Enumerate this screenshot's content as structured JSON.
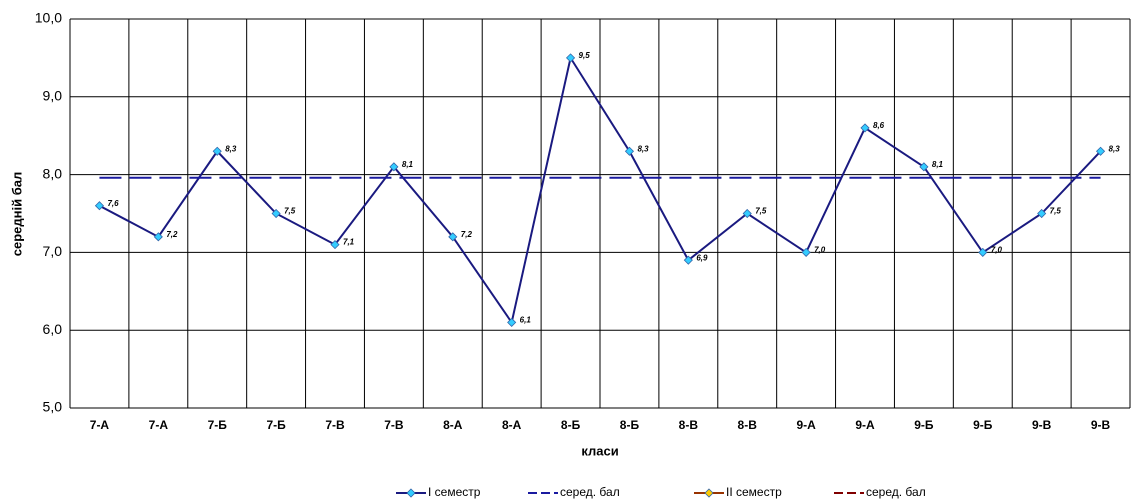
{
  "chart_data": {
    "type": "line",
    "x_label": "класи",
    "y_label": "середній бал",
    "categories": [
      "7-А",
      "7-А",
      "7-Б",
      "7-Б",
      "7-В",
      "7-В",
      "8-А",
      "8-А",
      "8-Б",
      "8-Б",
      "8-В",
      "8-В",
      "9-А",
      "9-А",
      "9-Б",
      "9-Б",
      "9-В",
      "9-В"
    ],
    "series": [
      {
        "name": "I семестр",
        "color": "#1a1a80",
        "marker_color": "#33ccff",
        "marker": true,
        "dashed": false,
        "values": [
          7.6,
          7.2,
          8.3,
          7.5,
          7.1,
          8.1,
          7.2,
          6.1,
          9.5,
          8.3,
          6.9,
          7.5,
          7.0,
          8.6,
          8.1,
          7.0,
          7.5,
          8.3
        ],
        "value_labels": [
          "7,6",
          "7,2",
          "8,3",
          "7,5",
          "7,1",
          "8,1",
          "7,2",
          "6,1",
          "9,5",
          "8,3",
          "6,9",
          "7,5",
          "7,0",
          "8,6",
          "8,1",
          "7,0",
          "7,5",
          "8,3"
        ]
      },
      {
        "name": "серед. бал",
        "color": "#1a1aa0",
        "marker": false,
        "dashed": true,
        "values": [
          7.96,
          7.96,
          7.96,
          7.96,
          7.96,
          7.96,
          7.96,
          7.96,
          7.96,
          7.96,
          7.96,
          7.96,
          7.96,
          7.96,
          7.96,
          7.96,
          7.96,
          7.96
        ]
      },
      {
        "name": "II семестр",
        "color": "#993300",
        "marker_color": "#ffcc00",
        "marker": true,
        "dashed": false,
        "values": [
          null,
          null,
          null,
          null,
          null,
          null,
          null,
          null,
          null,
          null,
          null,
          null,
          null,
          null,
          null,
          null,
          null,
          null
        ]
      },
      {
        "name": "серед. бал",
        "color": "#800000",
        "marker": false,
        "dashed": true,
        "values": [
          null,
          null,
          null,
          null,
          null,
          null,
          null,
          null,
          null,
          null,
          null,
          null,
          null,
          null,
          null,
          null,
          null,
          null
        ]
      }
    ],
    "ylim": [
      5,
      10
    ],
    "yticks": [
      {
        "value": 5,
        "label": "5,0"
      },
      {
        "value": 6,
        "label": "6,0"
      },
      {
        "value": 7,
        "label": "7,0"
      },
      {
        "value": 8,
        "label": "8,0"
      },
      {
        "value": 9,
        "label": "9,0"
      },
      {
        "value": 10,
        "label": "10,0"
      }
    ],
    "grid": true,
    "legend": "bottom"
  }
}
